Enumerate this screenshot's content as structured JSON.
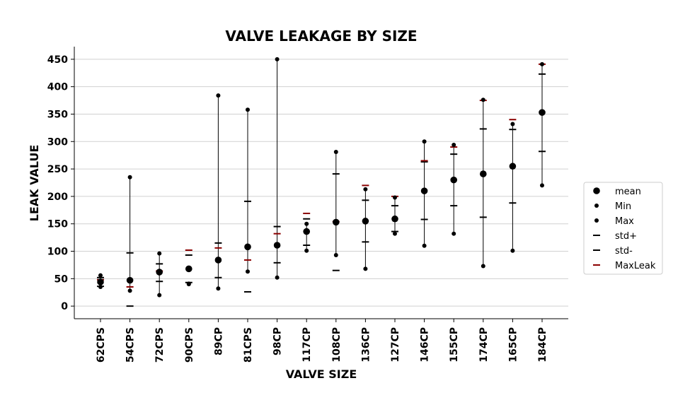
{
  "chart_data": {
    "type": "scatter",
    "title": "VALVE LEAKAGE BY SIZE",
    "xlabel": "VALVE SIZE",
    "ylabel": "LEAK VALUE",
    "ylim": [
      -23,
      473
    ],
    "yticks": [
      0,
      50,
      100,
      150,
      200,
      250,
      300,
      350,
      400,
      450
    ],
    "grid": "horizontal",
    "legend_placement": "right",
    "categories": [
      "62CPS",
      "54CPS",
      "72CPS",
      "90CPS",
      "89CP",
      "81CPS",
      "98CP",
      "117CP",
      "108CP",
      "136CP",
      "127CP",
      "146CP",
      "155CP",
      "174CP",
      "165CP",
      "184CP"
    ],
    "series": [
      {
        "name": "mean",
        "marker": "large-dot",
        "color": "#000000",
        "values": [
          44,
          47,
          62,
          68,
          84,
          108,
          111,
          136,
          153,
          155,
          159,
          210,
          230,
          241,
          255,
          353
        ]
      },
      {
        "name": "Min",
        "marker": "small-dot",
        "color": "#000000",
        "values": [
          35,
          28,
          20,
          40,
          32,
          63,
          52,
          101,
          93,
          68,
          132,
          110,
          132,
          73,
          101,
          220
        ]
      },
      {
        "name": "Max",
        "marker": "small-dot",
        "color": "#000000",
        "values": [
          56,
          235,
          96,
          41,
          384,
          358,
          450,
          150,
          281,
          213,
          198,
          300,
          294,
          376,
          332,
          441
        ]
      },
      {
        "name": "std+",
        "marker": "dash",
        "color": "#000000",
        "values": [
          52,
          97,
          77,
          93,
          115,
          191,
          145,
          159,
          241,
          193,
          183,
          263,
          277,
          323,
          322,
          423
        ]
      },
      {
        "name": "std-",
        "marker": "dash",
        "color": "#000000",
        "values": [
          36,
          0,
          45,
          43,
          52,
          26,
          79,
          111,
          65,
          117,
          136,
          158,
          183,
          162,
          188,
          282
        ]
      },
      {
        "name": "MaxLeak",
        "marker": "dash",
        "color": "#8b0000",
        "values": [
          48,
          35,
          64,
          102,
          106,
          84,
          132,
          169,
          154,
          220,
          200,
          265,
          290,
          375,
          340,
          441
        ]
      }
    ]
  }
}
